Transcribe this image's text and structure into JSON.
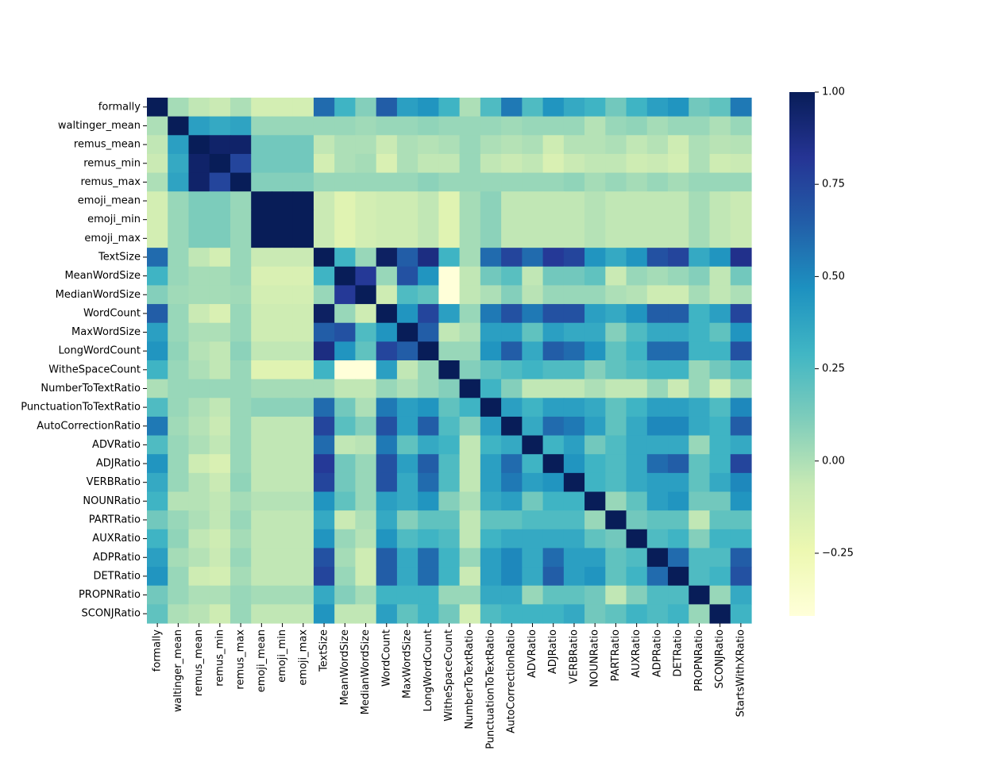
{
  "chart_data": {
    "type": "heatmap",
    "title": "",
    "xlabel": "",
    "ylabel": "",
    "colormap": "YlGnBu",
    "vmin": -0.42,
    "vmax": 1.0,
    "colorbar": {
      "ticks": [
        1.0,
        0.75,
        0.5,
        0.25,
        0.0,
        -0.25
      ],
      "tick_labels": [
        "1.00",
        "0.75",
        "0.50",
        "0.25",
        "0.00",
        "−0.25"
      ]
    },
    "row_labels": [
      "formally",
      "waltinger_mean",
      "remus_mean",
      "remus_min",
      "remus_max",
      "emoji_mean",
      "emoji_min",
      "emoji_max",
      "TextSize",
      "MeanWordSize",
      "MedianWordSize",
      "WordCount",
      "MaxWordSize",
      "LongWordCount",
      "WitheSpaceCount",
      "NumberToTextRatio",
      "PunctuationToTextRatio",
      "AutoCorrectionRatio",
      "ADVRatio",
      "ADJRatio",
      "VERBRatio",
      "NOUNRatio",
      "PARTRatio",
      "AUXRatio",
      "ADPRatio",
      "DETRatio",
      "PROPNRatio",
      "SCONJRatio"
    ],
    "col_labels": [
      "formally",
      "waltinger_mean",
      "remus_mean",
      "remus_min",
      "remus_max",
      "emoji_mean",
      "emoji_min",
      "emoji_max",
      "TextSize",
      "MeanWordSize",
      "MedianWordSize",
      "WordCount",
      "MaxWordSize",
      "LongWordCount",
      "WitheSpaceCount",
      "NumberToTextRatio",
      "PunctuationToTextRatio",
      "AutoCorrectionRatio",
      "ADVRatio",
      "ADJRatio",
      "VERBRatio",
      "NOUNRatio",
      "PARTRatio",
      "AUXRatio",
      "ADPRatio",
      "DETRatio",
      "PROPNRatio",
      "SCONJRatio",
      "StartsWithXRatio"
    ],
    "values": [
      [
        1.0,
        0.02,
        -0.05,
        -0.08,
        0.0,
        -0.12,
        -0.12,
        -0.12,
        0.6,
        0.3,
        0.1,
        0.65,
        0.4,
        0.45,
        0.3,
        0.0,
        0.25,
        0.55,
        0.25,
        0.45,
        0.35,
        0.3,
        0.15,
        0.3,
        0.4,
        0.45,
        0.15,
        0.2,
        0.55
      ],
      [
        0.0,
        1.0,
        0.4,
        0.35,
        0.38,
        0.05,
        0.05,
        0.05,
        0.05,
        0.05,
        0.03,
        0.05,
        0.05,
        0.07,
        0.05,
        0.05,
        0.05,
        0.03,
        0.05,
        0.05,
        0.05,
        -0.02,
        0.05,
        0.07,
        0.02,
        0.05,
        0.05,
        0.0,
        0.05
      ],
      [
        -0.05,
        0.4,
        1.0,
        0.95,
        0.95,
        0.15,
        0.15,
        0.15,
        -0.05,
        0.0,
        0.0,
        -0.08,
        0.0,
        -0.02,
        0.0,
        0.05,
        0.0,
        -0.02,
        0.0,
        -0.1,
        -0.02,
        -0.02,
        0.0,
        -0.05,
        -0.02,
        -0.1,
        0.0,
        -0.03,
        -0.02
      ],
      [
        -0.08,
        0.35,
        0.95,
        1.0,
        0.75,
        0.15,
        0.15,
        0.15,
        -0.12,
        0.0,
        0.02,
        -0.15,
        0.0,
        -0.05,
        -0.05,
        0.05,
        -0.05,
        -0.08,
        -0.05,
        -0.15,
        -0.08,
        -0.05,
        -0.05,
        -0.1,
        -0.08,
        -0.12,
        0.0,
        -0.1,
        -0.08
      ],
      [
        0.0,
        0.38,
        0.95,
        0.75,
        1.0,
        0.1,
        0.1,
        0.1,
        0.05,
        0.05,
        0.05,
        0.05,
        0.05,
        0.08,
        0.05,
        0.05,
        0.05,
        0.05,
        0.05,
        0.05,
        0.07,
        0.02,
        0.05,
        0.02,
        0.05,
        0.02,
        0.05,
        0.05,
        0.05
      ],
      [
        -0.12,
        0.05,
        0.12,
        0.12,
        0.05,
        1.0,
        1.0,
        1.0,
        -0.08,
        -0.18,
        -0.12,
        -0.1,
        -0.1,
        -0.05,
        -0.18,
        0.02,
        0.08,
        -0.05,
        -0.05,
        -0.05,
        -0.05,
        -0.02,
        -0.05,
        -0.05,
        -0.05,
        -0.05,
        0.02,
        -0.05,
        -0.08
      ],
      [
        -0.12,
        0.05,
        0.12,
        0.12,
        0.05,
        1.0,
        1.0,
        1.0,
        -0.08,
        -0.18,
        -0.12,
        -0.1,
        -0.1,
        -0.05,
        -0.18,
        0.02,
        0.08,
        -0.05,
        -0.05,
        -0.05,
        -0.05,
        -0.02,
        -0.05,
        -0.05,
        -0.05,
        -0.05,
        0.02,
        -0.05,
        -0.08
      ],
      [
        -0.12,
        0.05,
        0.12,
        0.12,
        0.05,
        1.0,
        1.0,
        1.0,
        -0.08,
        -0.18,
        -0.12,
        -0.1,
        -0.1,
        -0.05,
        -0.18,
        0.02,
        0.08,
        -0.05,
        -0.05,
        -0.05,
        -0.05,
        -0.02,
        -0.05,
        -0.05,
        -0.05,
        -0.05,
        0.02,
        -0.05,
        -0.08
      ],
      [
        0.6,
        0.05,
        -0.05,
        -0.12,
        0.05,
        -0.08,
        -0.08,
        -0.08,
        1.0,
        0.3,
        0.05,
        0.97,
        0.65,
        0.88,
        0.3,
        0.02,
        0.6,
        0.75,
        0.6,
        0.8,
        0.75,
        0.45,
        0.35,
        0.45,
        0.7,
        0.75,
        0.35,
        0.45,
        0.85
      ],
      [
        0.3,
        0.05,
        0.02,
        0.02,
        0.05,
        -0.15,
        -0.15,
        -0.15,
        0.3,
        1.0,
        0.8,
        0.05,
        0.7,
        0.45,
        -0.42,
        -0.05,
        0.15,
        0.22,
        -0.05,
        0.15,
        0.15,
        0.2,
        -0.08,
        0.05,
        0.02,
        0.05,
        0.1,
        -0.05,
        0.15
      ],
      [
        0.1,
        0.03,
        0.02,
        0.02,
        0.03,
        -0.12,
        -0.12,
        -0.12,
        0.05,
        0.8,
        1.0,
        -0.1,
        0.25,
        0.2,
        -0.42,
        -0.05,
        0.0,
        0.1,
        -0.03,
        0.05,
        0.05,
        0.05,
        0.0,
        -0.02,
        -0.1,
        -0.1,
        0.02,
        -0.05,
        0.0
      ],
      [
        0.65,
        0.05,
        -0.08,
        -0.15,
        0.05,
        -0.1,
        -0.1,
        -0.1,
        0.97,
        0.05,
        -0.1,
        1.0,
        0.45,
        0.75,
        0.4,
        0.05,
        0.55,
        0.7,
        0.55,
        0.7,
        0.7,
        0.4,
        0.35,
        0.45,
        0.65,
        0.65,
        0.3,
        0.4,
        0.75
      ],
      [
        0.4,
        0.05,
        0.0,
        0.0,
        0.05,
        -0.1,
        -0.1,
        -0.1,
        0.65,
        0.7,
        0.25,
        0.45,
        1.0,
        0.65,
        -0.05,
        0.0,
        0.4,
        0.4,
        0.2,
        0.4,
        0.35,
        0.35,
        0.1,
        0.25,
        0.35,
        0.35,
        0.3,
        0.2,
        0.45
      ],
      [
        0.45,
        0.07,
        -0.02,
        -0.05,
        0.08,
        -0.05,
        -0.05,
        -0.05,
        0.88,
        0.45,
        0.2,
        0.75,
        0.65,
        1.0,
        0.05,
        0.05,
        0.45,
        0.65,
        0.35,
        0.65,
        0.6,
        0.45,
        0.2,
        0.3,
        0.6,
        0.6,
        0.3,
        0.3,
        0.7
      ],
      [
        0.3,
        0.05,
        0.0,
        -0.05,
        0.05,
        -0.18,
        -0.18,
        -0.18,
        0.3,
        -0.42,
        -0.42,
        0.4,
        -0.05,
        0.05,
        1.0,
        0.1,
        0.2,
        0.25,
        0.3,
        0.25,
        0.25,
        0.1,
        0.2,
        0.25,
        0.3,
        0.3,
        0.05,
        0.15,
        0.25
      ],
      [
        0.0,
        0.05,
        0.05,
        0.05,
        0.05,
        0.02,
        0.02,
        0.02,
        0.02,
        -0.05,
        -0.05,
        0.05,
        0.0,
        0.05,
        0.1,
        1.0,
        0.3,
        0.1,
        -0.05,
        -0.05,
        -0.05,
        0.0,
        -0.05,
        -0.05,
        0.05,
        -0.08,
        0.05,
        -0.12,
        0.05
      ],
      [
        0.25,
        0.05,
        0.0,
        -0.05,
        0.05,
        0.08,
        0.08,
        0.08,
        0.6,
        0.15,
        0.0,
        0.55,
        0.4,
        0.45,
        0.2,
        0.3,
        1.0,
        0.4,
        0.3,
        0.4,
        0.4,
        0.35,
        0.2,
        0.3,
        0.4,
        0.4,
        0.35,
        0.25,
        0.5
      ],
      [
        0.55,
        0.03,
        -0.02,
        -0.08,
        0.05,
        -0.05,
        -0.05,
        -0.05,
        0.75,
        0.22,
        0.1,
        0.7,
        0.4,
        0.65,
        0.25,
        0.1,
        0.4,
        1.0,
        0.35,
        0.6,
        0.55,
        0.4,
        0.2,
        0.35,
        0.5,
        0.5,
        0.35,
        0.3,
        0.65
      ],
      [
        0.25,
        0.05,
        0.0,
        -0.05,
        0.05,
        -0.05,
        -0.05,
        -0.05,
        0.6,
        -0.05,
        -0.03,
        0.55,
        0.2,
        0.35,
        0.3,
        -0.05,
        0.3,
        0.35,
        1.0,
        0.3,
        0.4,
        0.15,
        0.25,
        0.35,
        0.35,
        0.35,
        0.05,
        0.3,
        0.35
      ],
      [
        0.45,
        0.05,
        -0.1,
        -0.15,
        0.05,
        -0.05,
        -0.05,
        -0.05,
        0.8,
        0.15,
        0.05,
        0.7,
        0.4,
        0.65,
        0.25,
        -0.05,
        0.4,
        0.6,
        0.3,
        1.0,
        0.45,
        0.3,
        0.25,
        0.35,
        0.6,
        0.65,
        0.2,
        0.3,
        0.75
      ],
      [
        0.35,
        0.05,
        -0.02,
        -0.08,
        0.07,
        -0.05,
        -0.05,
        -0.05,
        0.75,
        0.15,
        0.05,
        0.7,
        0.35,
        0.6,
        0.25,
        -0.05,
        0.4,
        0.55,
        0.4,
        0.45,
        1.0,
        0.3,
        0.25,
        0.35,
        0.4,
        0.4,
        0.2,
        0.35,
        0.5
      ],
      [
        0.3,
        -0.02,
        -0.02,
        -0.05,
        0.02,
        -0.02,
        -0.02,
        -0.02,
        0.45,
        0.2,
        0.05,
        0.4,
        0.35,
        0.45,
        0.1,
        0.0,
        0.35,
        0.4,
        0.15,
        0.3,
        0.3,
        1.0,
        0.05,
        0.2,
        0.4,
        0.45,
        0.15,
        0.15,
        0.45
      ],
      [
        0.15,
        0.05,
        0.0,
        -0.05,
        0.05,
        -0.05,
        -0.05,
        -0.05,
        0.35,
        -0.08,
        0.0,
        0.35,
        0.1,
        0.2,
        0.2,
        -0.05,
        0.2,
        0.2,
        0.25,
        0.25,
        0.25,
        0.05,
        1.0,
        0.15,
        0.2,
        0.2,
        -0.05,
        0.2,
        0.2
      ],
      [
        0.3,
        0.07,
        -0.05,
        -0.1,
        0.02,
        -0.05,
        -0.05,
        -0.05,
        0.45,
        0.05,
        -0.02,
        0.45,
        0.25,
        0.3,
        0.25,
        -0.05,
        0.3,
        0.35,
        0.35,
        0.35,
        0.35,
        0.2,
        0.15,
        1.0,
        0.25,
        0.3,
        0.1,
        0.3,
        0.3
      ],
      [
        0.4,
        0.02,
        -0.02,
        -0.08,
        0.05,
        -0.05,
        -0.05,
        -0.05,
        0.7,
        0.02,
        -0.1,
        0.65,
        0.35,
        0.6,
        0.3,
        0.05,
        0.4,
        0.5,
        0.35,
        0.6,
        0.4,
        0.4,
        0.2,
        0.25,
        1.0,
        0.6,
        0.25,
        0.25,
        0.65
      ],
      [
        0.45,
        0.05,
        -0.1,
        -0.12,
        0.02,
        -0.05,
        -0.05,
        -0.05,
        0.75,
        0.05,
        -0.1,
        0.65,
        0.35,
        0.6,
        0.3,
        -0.08,
        0.4,
        0.5,
        0.35,
        0.65,
        0.4,
        0.45,
        0.2,
        0.3,
        0.6,
        1.0,
        0.25,
        0.3,
        0.7
      ],
      [
        0.15,
        0.05,
        0.0,
        0.0,
        0.05,
        0.02,
        0.02,
        0.02,
        0.35,
        0.1,
        0.02,
        0.3,
        0.3,
        0.3,
        0.05,
        0.05,
        0.35,
        0.35,
        0.05,
        0.2,
        0.2,
        0.15,
        -0.05,
        0.1,
        0.25,
        0.25,
        1.0,
        0.05,
        0.35
      ],
      [
        0.2,
        0.0,
        -0.03,
        -0.1,
        0.05,
        -0.05,
        -0.05,
        -0.05,
        0.45,
        -0.05,
        -0.05,
        0.4,
        0.2,
        0.3,
        0.15,
        -0.12,
        0.25,
        0.3,
        0.3,
        0.3,
        0.35,
        0.15,
        0.2,
        0.3,
        0.25,
        0.3,
        0.05,
        1.0,
        0.3
      ]
    ]
  }
}
